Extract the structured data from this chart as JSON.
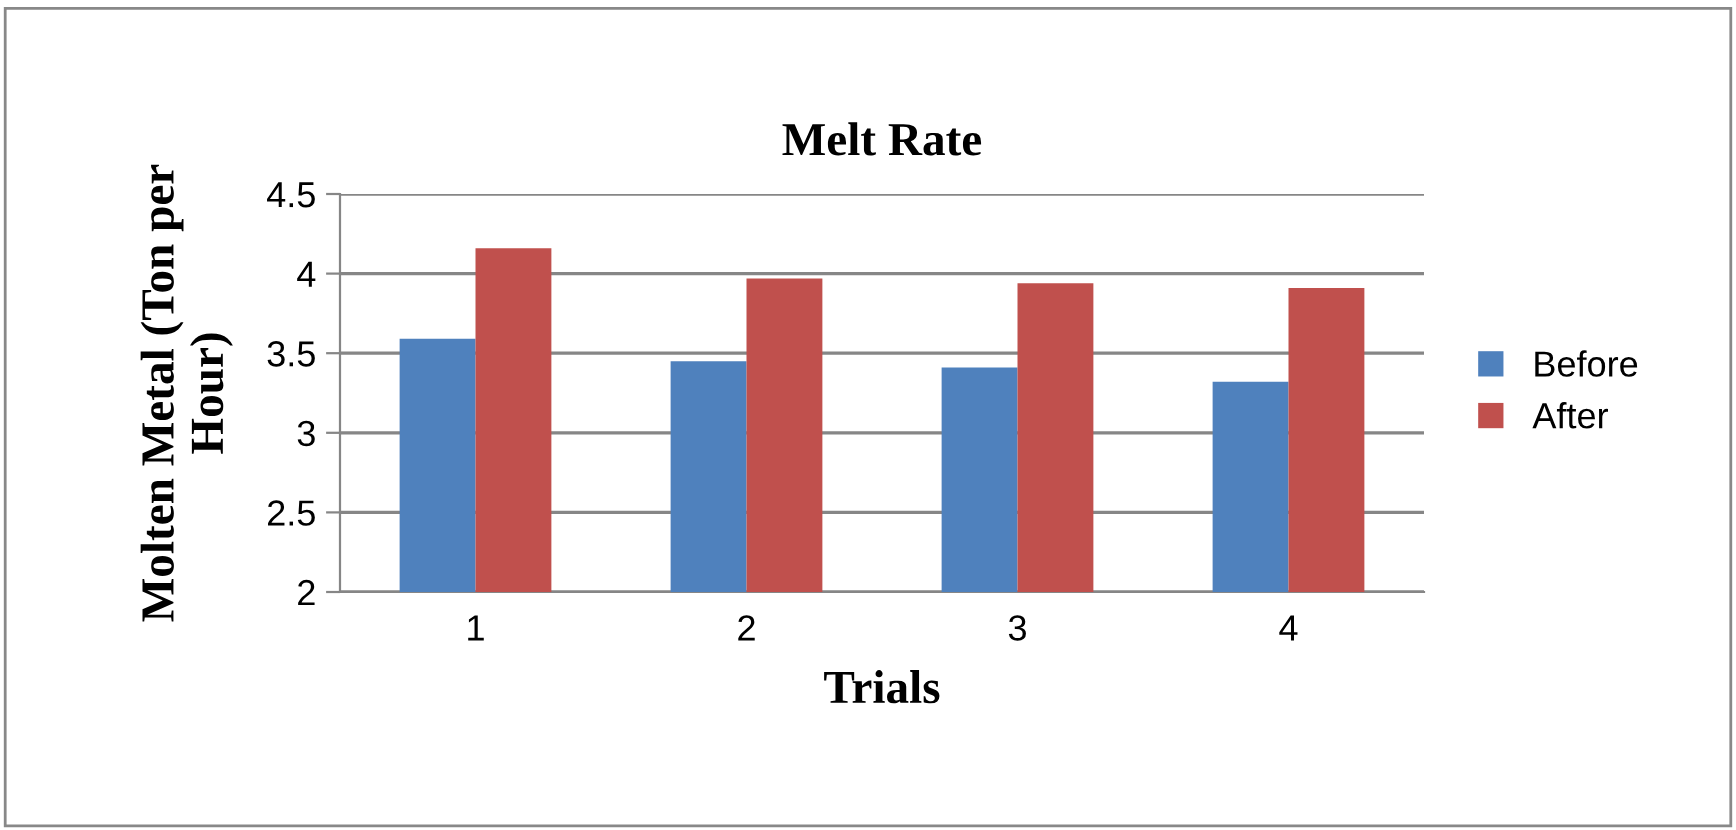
{
  "chart_data": {
    "type": "bar",
    "title": "Melt Rate",
    "xlabel": "Trials",
    "ylabel": "Molten Metal (Ton per\nHour)",
    "categories": [
      "1",
      "2",
      "3",
      "4"
    ],
    "series": [
      {
        "name": "Before",
        "color": "#4f81bd",
        "values": [
          3.59,
          3.45,
          3.41,
          3.32
        ]
      },
      {
        "name": "After",
        "color": "#c0504d",
        "values": [
          4.16,
          3.97,
          3.94,
          3.91
        ]
      }
    ],
    "ylim": [
      2,
      4.5
    ],
    "yticks": [
      2,
      2.5,
      3,
      3.5,
      4,
      4.5
    ],
    "grid": "y",
    "legend": "right"
  }
}
